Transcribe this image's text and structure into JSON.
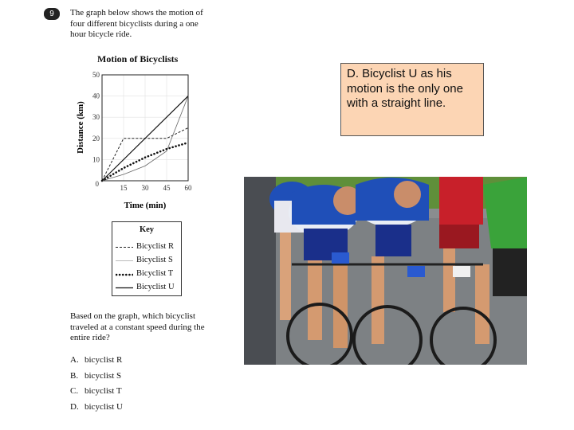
{
  "question": {
    "number": "9",
    "stem_lines": [
      "The graph below shows the motion of",
      "four different bicyclists during a one",
      "hour bicycle ride."
    ],
    "prompt_lines": [
      "Based on the graph, which bicyclist",
      "traveled at a constant speed during the",
      "entire ride?"
    ],
    "choices": [
      {
        "letter": "A.",
        "text": "bicyclist R"
      },
      {
        "letter": "B.",
        "text": "bicyclist S"
      },
      {
        "letter": "C.",
        "text": "bicyclist T"
      },
      {
        "letter": "D.",
        "text": "bicyclist U"
      }
    ]
  },
  "key": {
    "title": "Key",
    "items": [
      {
        "label": "Bicyclist R",
        "style": "dashed"
      },
      {
        "label": "Bicyclist S",
        "style": "thin"
      },
      {
        "label": "Bicyclist T",
        "style": "dotted-bold"
      },
      {
        "label": "Bicyclist U",
        "style": "solid"
      }
    ]
  },
  "answer_note": "D.  Bicyclist U as his motion is the only one with a straight line.",
  "photo": {
    "subject": "cyclists-racing",
    "colors": {
      "jersey": "#1f4fb8",
      "jersey_red": "#c8202a",
      "jersey_green": "#3aa33a",
      "road": "#8a8d8f",
      "grass": "#5f8f3a"
    }
  },
  "chart_data": {
    "type": "line",
    "title": "Motion of Bicyclists",
    "xlabel": "Time (min)",
    "ylabel": "Distance (km)",
    "xlim": [
      0,
      60
    ],
    "ylim": [
      0,
      50
    ],
    "x_ticks": [
      15,
      30,
      45,
      60
    ],
    "y_ticks": [
      10,
      20,
      30,
      40,
      50
    ],
    "origin_label": "0",
    "series": [
      {
        "name": "Bicyclist R",
        "style": "dashed",
        "x": [
          0,
          15,
          45,
          60
        ],
        "y": [
          0,
          20,
          20,
          25
        ]
      },
      {
        "name": "Bicyclist S",
        "style": "thin",
        "x": [
          0,
          15,
          30,
          45,
          60
        ],
        "y": [
          0,
          3,
          7,
          14,
          40
        ]
      },
      {
        "name": "Bicyclist T",
        "style": "dotted-bold",
        "x": [
          0,
          15,
          30,
          45,
          60
        ],
        "y": [
          0,
          6,
          11,
          15,
          18
        ]
      },
      {
        "name": "Bicyclist U",
        "style": "solid",
        "x": [
          0,
          60
        ],
        "y": [
          0,
          40
        ]
      }
    ]
  }
}
